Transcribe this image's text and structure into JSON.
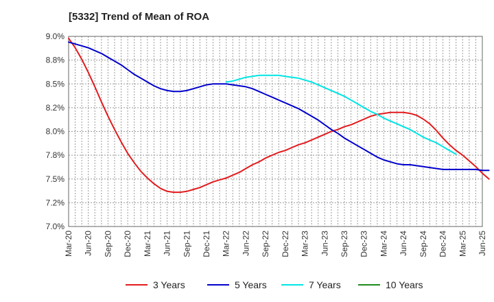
{
  "chart_data": {
    "type": "line",
    "title": "[5332]  Trend of Mean of ROA",
    "xlabel": "",
    "ylabel": "",
    "x_tick_labels": [
      "Mar-20",
      "Jun-20",
      "Sep-20",
      "Dec-20",
      "Mar-21",
      "Jun-21",
      "Sep-21",
      "Dec-21",
      "Mar-22",
      "Jun-22",
      "Sep-22",
      "Dec-22",
      "Mar-23",
      "Jun-23",
      "Sep-23",
      "Dec-23",
      "Mar-24",
      "Jun-24",
      "Sep-24",
      "Dec-24",
      "Mar-25",
      "Jun-25"
    ],
    "y_tick_labels": [
      "7.0%",
      "7.2%",
      "7.5%",
      "7.8%",
      "8.0%",
      "8.2%",
      "8.5%",
      "8.8%",
      "9.0%"
    ],
    "ylim": [
      7.0,
      9.0
    ],
    "grid": true,
    "legend_position": "bottom",
    "series": [
      {
        "name": "3 Years",
        "color": "#e31a1c",
        "start_index": 0,
        "values": [
          8.98,
          8.88,
          8.76,
          8.62,
          8.47,
          8.31,
          8.16,
          8.02,
          7.89,
          7.77,
          7.67,
          7.58,
          7.51,
          7.45,
          7.4,
          7.37,
          7.36,
          7.36,
          7.37,
          7.39,
          7.41,
          7.44,
          7.47,
          7.49,
          7.51,
          7.54,
          7.57,
          7.61,
          7.65,
          7.68,
          7.72,
          7.75,
          7.78,
          7.8,
          7.83,
          7.86,
          7.88,
          7.91,
          7.94,
          7.97,
          8.0,
          8.02,
          8.05,
          8.07,
          8.1,
          8.13,
          8.16,
          8.18,
          8.19,
          8.2,
          8.2,
          8.2,
          8.19,
          8.17,
          8.13,
          8.08,
          8.01,
          7.93,
          7.86,
          7.8,
          7.75,
          7.69,
          7.63,
          7.56,
          7.5
        ]
      },
      {
        "name": "5 Years",
        "color": "#0000cc",
        "start_index": 0,
        "values": [
          8.94,
          8.92,
          8.9,
          8.88,
          8.85,
          8.82,
          8.78,
          8.74,
          8.7,
          8.65,
          8.6,
          8.56,
          8.52,
          8.48,
          8.45,
          8.43,
          8.42,
          8.42,
          8.43,
          8.45,
          8.47,
          8.49,
          8.5,
          8.5,
          8.5,
          8.49,
          8.48,
          8.47,
          8.45,
          8.42,
          8.39,
          8.36,
          8.33,
          8.3,
          8.27,
          8.24,
          8.2,
          8.16,
          8.12,
          8.07,
          8.02,
          7.98,
          7.93,
          7.89,
          7.85,
          7.81,
          7.77,
          7.73,
          7.7,
          7.68,
          7.66,
          7.65,
          7.65,
          7.64,
          7.63,
          7.62,
          7.61,
          7.6,
          7.6,
          7.6,
          7.6,
          7.6,
          7.6,
          7.59,
          7.59
        ]
      },
      {
        "name": "7 Years",
        "color": "#00e5e5",
        "start_index": 24,
        "values": [
          8.52,
          8.53,
          8.55,
          8.57,
          8.58,
          8.59,
          8.59,
          8.59,
          8.59,
          8.58,
          8.57,
          8.56,
          8.54,
          8.52,
          8.49,
          8.46,
          8.43,
          8.4,
          8.37,
          8.33,
          8.29,
          8.25,
          8.21,
          8.18,
          8.14,
          8.11,
          8.08,
          8.05,
          8.02,
          7.98,
          7.94,
          7.91,
          7.88,
          7.84,
          7.8,
          7.76
        ]
      },
      {
        "name": "10 Years",
        "color": "#1a8a1a",
        "start_index": 0,
        "values": []
      }
    ]
  }
}
